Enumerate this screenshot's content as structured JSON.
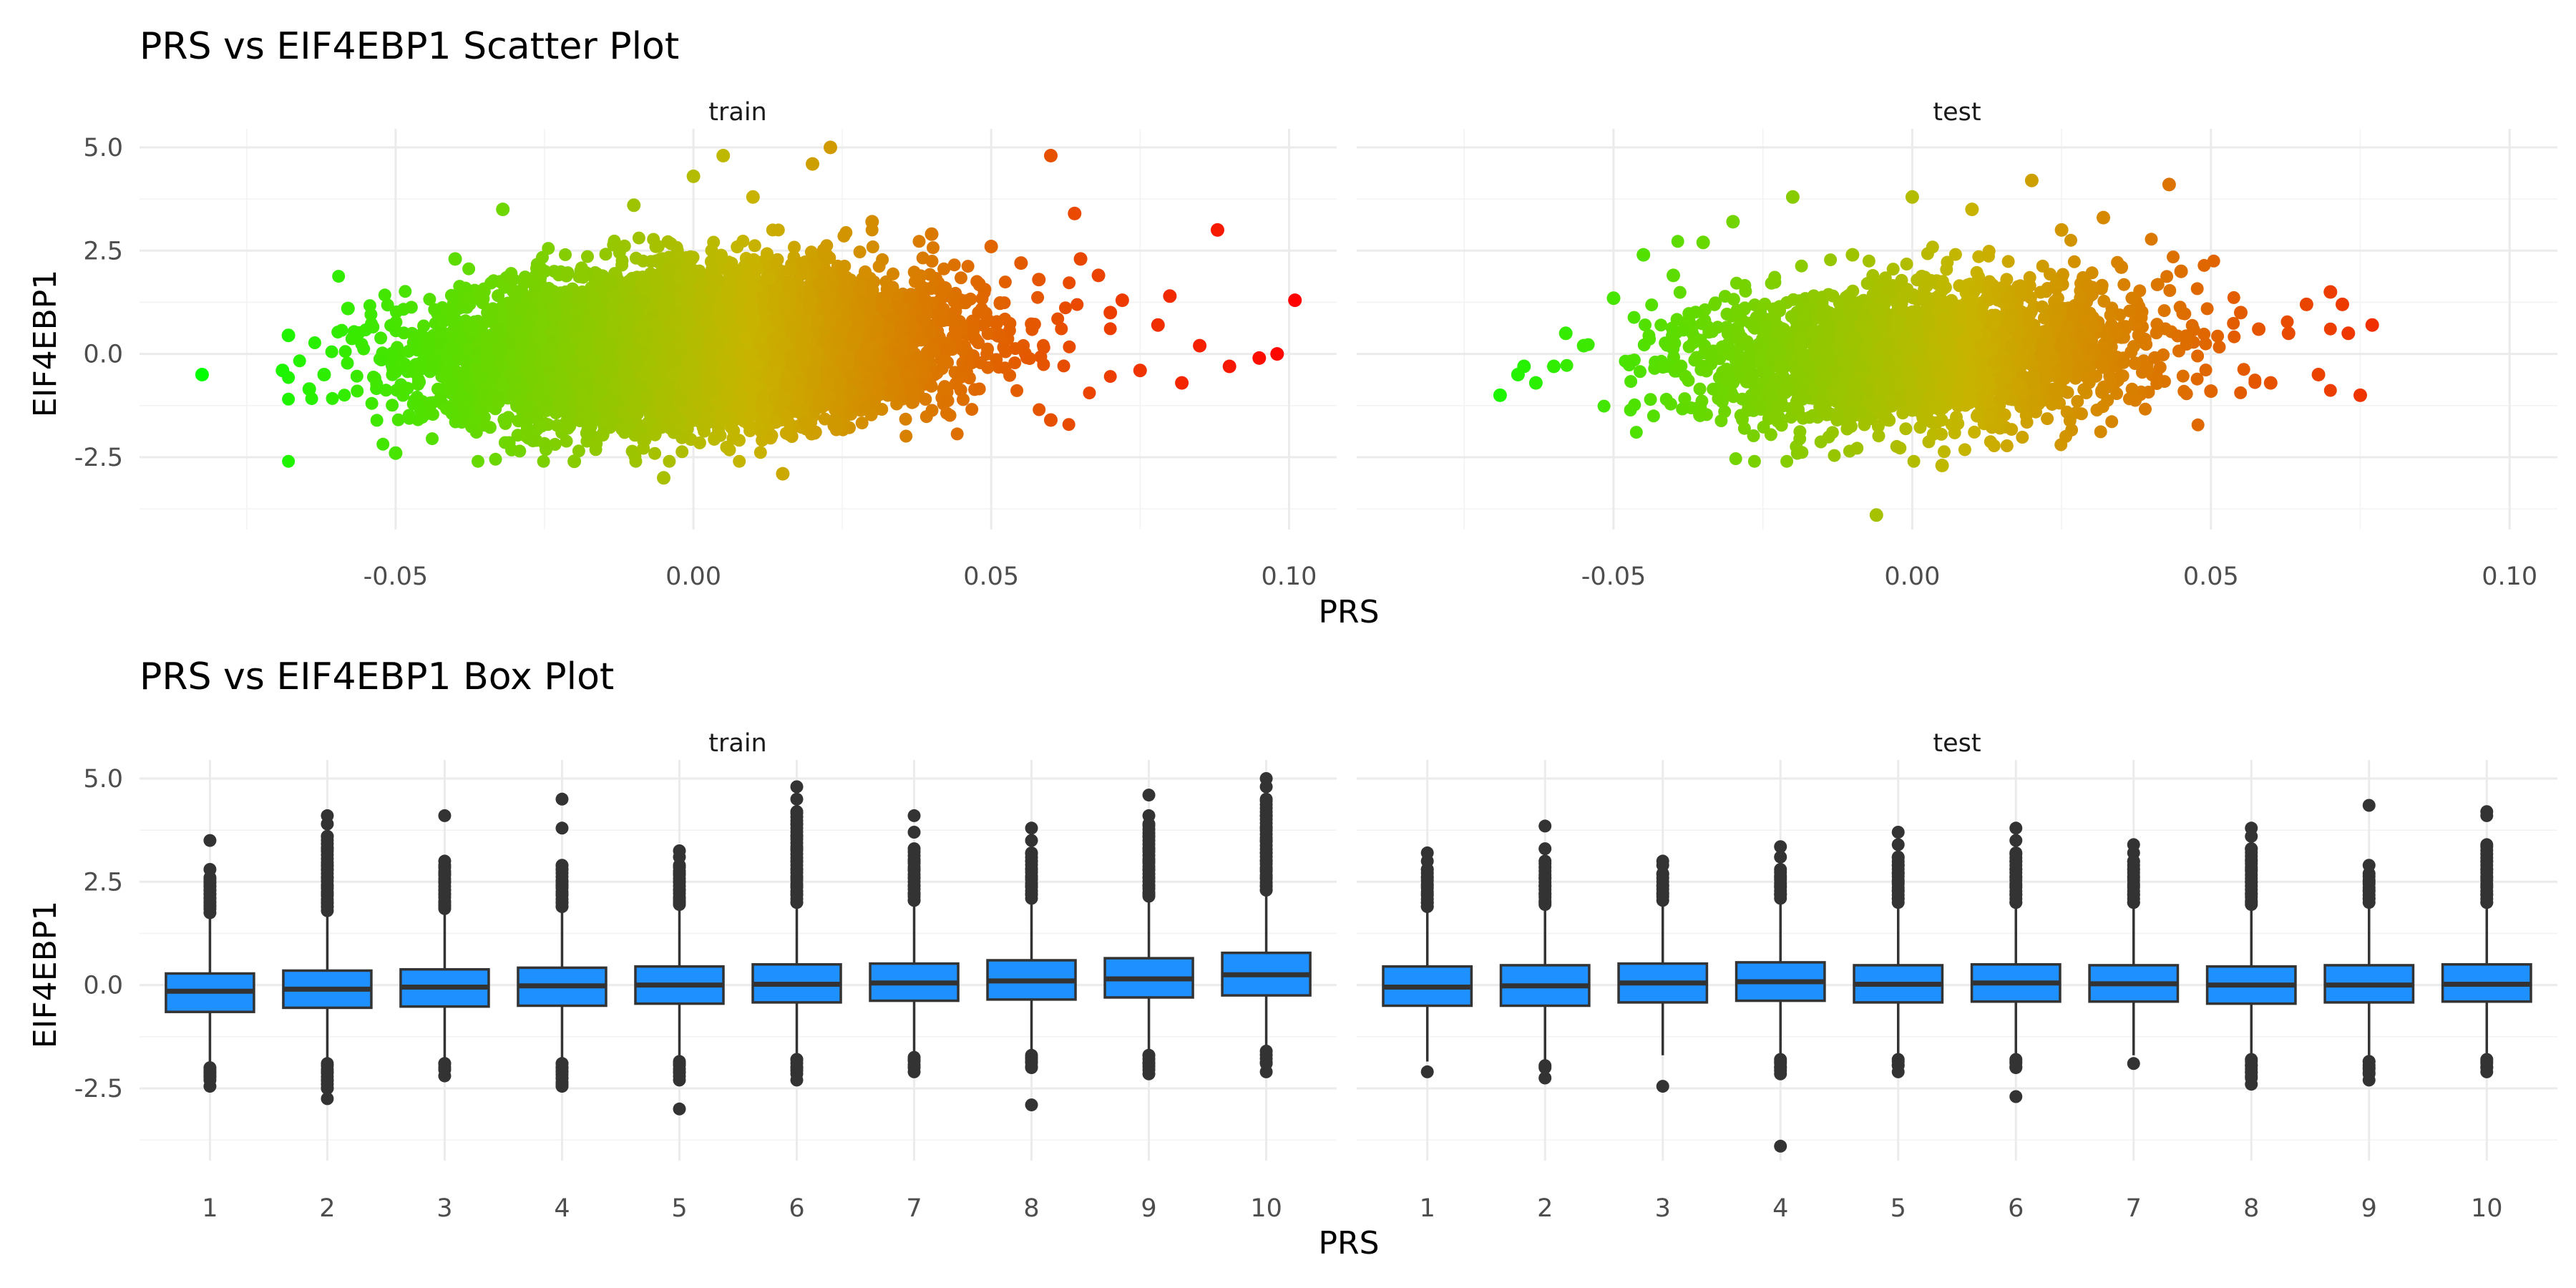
{
  "chart_data": [
    {
      "type": "scatter",
      "title": "PRS vs EIF4EBP1 Scatter Plot",
      "xlabel": "PRS",
      "ylabel": "EIF4EBP1",
      "xlim": [
        -0.093,
        0.108
      ],
      "ylim": [
        -4.25,
        5.45
      ],
      "xticks": [
        -0.05,
        0.0,
        0.05,
        0.1
      ],
      "xtick_labels": [
        "-0.05",
        "0.00",
        "0.05",
        "0.10"
      ],
      "yticks": [
        -2.5,
        0.0,
        2.5,
        5.0
      ],
      "ytick_labels": [
        "-2.5",
        "0.0",
        "2.5",
        "5.0"
      ],
      "grid": true,
      "legend": "none",
      "color_scale": {
        "low": "#00ff00",
        "mid": "#c8b400",
        "high": "#ff0000",
        "maps": "x"
      },
      "panels": [
        {
          "name": "train",
          "spread": {
            "x_center": 0.0,
            "x_sd": 0.02,
            "y_center": 0.15,
            "y_sd": 0.85,
            "n_approx": 8000
          },
          "points": [
            [
              -0.0825,
              -0.5
            ],
            [
              -0.069,
              -0.4
            ],
            [
              -0.068,
              0.45
            ],
            [
              -0.0645,
              -0.85
            ],
            [
              -0.062,
              -0.5
            ],
            [
              -0.058,
              1.1
            ],
            [
              -0.05,
              -2.4
            ],
            [
              -0.04,
              2.3
            ],
            [
              -0.032,
              3.5
            ],
            [
              -0.02,
              -2.6
            ],
            [
              -0.01,
              3.6
            ],
            [
              -0.005,
              -3.0
            ],
            [
              0.0,
              4.3
            ],
            [
              0.005,
              4.8
            ],
            [
              0.01,
              3.8
            ],
            [
              0.015,
              -2.9
            ],
            [
              0.023,
              5.0
            ],
            [
              0.02,
              4.6
            ],
            [
              0.03,
              3.2
            ],
            [
              0.04,
              2.9
            ],
            [
              0.05,
              2.6
            ],
            [
              0.055,
              2.2
            ],
            [
              0.06,
              4.8
            ],
            [
              0.058,
              1.8
            ],
            [
              0.06,
              -1.6
            ],
            [
              0.064,
              3.4
            ],
            [
              0.065,
              2.3
            ],
            [
              0.068,
              1.9
            ],
            [
              0.07,
              1.0
            ],
            [
              0.072,
              1.3
            ],
            [
              0.075,
              -0.4
            ],
            [
              0.078,
              0.7
            ],
            [
              0.08,
              1.4
            ],
            [
              0.082,
              -0.7
            ],
            [
              0.085,
              0.2
            ],
            [
              0.088,
              3.0
            ],
            [
              0.09,
              -0.3
            ],
            [
              0.095,
              -0.1
            ],
            [
              0.098,
              0.0
            ],
            [
              0.101,
              1.3
            ]
          ]
        },
        {
          "name": "test",
          "spread": {
            "x_center": 0.0,
            "x_sd": 0.019,
            "y_center": 0.0,
            "y_sd": 0.85,
            "n_approx": 2500
          },
          "points": [
            [
              -0.069,
              -1.0
            ],
            [
              -0.066,
              -0.5
            ],
            [
              -0.065,
              -0.3
            ],
            [
              -0.063,
              -0.7
            ],
            [
              -0.06,
              -0.3
            ],
            [
              -0.058,
              0.5
            ],
            [
              -0.055,
              0.2
            ],
            [
              -0.05,
              1.35
            ],
            [
              -0.045,
              2.4
            ],
            [
              -0.04,
              1.9
            ],
            [
              -0.035,
              2.7
            ],
            [
              -0.03,
              3.2
            ],
            [
              -0.02,
              3.8
            ],
            [
              -0.01,
              2.4
            ],
            [
              -0.006,
              -3.9
            ],
            [
              0.0,
              3.8
            ],
            [
              0.005,
              -2.7
            ],
            [
              0.01,
              3.5
            ],
            [
              0.02,
              4.2
            ],
            [
              0.025,
              3.0
            ],
            [
              0.032,
              3.3
            ],
            [
              0.035,
              2.1
            ],
            [
              0.043,
              4.1
            ],
            [
              0.045,
              2.0
            ],
            [
              0.05,
              -0.9
            ],
            [
              0.055,
              1.0
            ],
            [
              0.058,
              0.6
            ],
            [
              0.06,
              -0.7
            ],
            [
              0.063,
              0.5
            ],
            [
              0.066,
              1.2
            ],
            [
              0.068,
              -0.5
            ],
            [
              0.07,
              1.5
            ],
            [
              0.072,
              1.2
            ],
            [
              0.073,
              0.5
            ],
            [
              0.075,
              -1.0
            ],
            [
              0.077,
              0.7
            ]
          ]
        }
      ]
    },
    {
      "type": "box",
      "title": "PRS vs EIF4EBP1 Box Plot",
      "xlabel": "PRS",
      "ylabel": "EIF4EBP1",
      "categories": [
        "1",
        "2",
        "3",
        "4",
        "5",
        "6",
        "7",
        "8",
        "9",
        "10"
      ],
      "ylim": [
        -4.25,
        5.45
      ],
      "yticks": [
        -2.5,
        0.0,
        2.5,
        5.0
      ],
      "ytick_labels": [
        "-2.5",
        "0.0",
        "2.5",
        "5.0"
      ],
      "grid": true,
      "legend": "none",
      "box_fill": "#1e90ff",
      "line_color": "#333333",
      "panels": [
        {
          "name": "train",
          "boxes": [
            {
              "q1": -0.65,
              "median": -0.15,
              "q3": 0.28,
              "whisker_low": -1.95,
              "whisker_high": 1.65,
              "outliers": [
                3.5,
                2.8,
                2.6,
                2.5,
                2.4,
                2.3,
                2.2,
                2.1,
                2.0,
                1.9,
                -2.0,
                -2.1,
                -2.2,
                -2.3,
                -2.45
              ]
            },
            {
              "q1": -0.55,
              "median": -0.1,
              "q3": 0.35,
              "whisker_low": -1.85,
              "whisker_high": 1.7,
              "outliers": [
                4.1,
                3.9,
                3.6,
                3.3,
                2.9,
                2.8,
                2.6,
                2.4,
                2.2,
                2.0,
                1.9,
                -1.9,
                -2.1,
                -2.3,
                -2.5,
                -2.75
              ]
            },
            {
              "q1": -0.52,
              "median": -0.05,
              "q3": 0.38,
              "whisker_low": -1.8,
              "whisker_high": 1.75,
              "outliers": [
                4.1,
                3.0,
                2.9,
                2.7,
                2.5,
                2.3,
                2.2,
                2.0,
                1.9,
                -1.9,
                -2.05,
                -2.2
              ]
            },
            {
              "q1": -0.5,
              "median": -0.02,
              "q3": 0.42,
              "whisker_low": -1.8,
              "whisker_high": 1.8,
              "outliers": [
                4.5,
                3.8,
                2.9,
                2.8,
                2.5,
                2.4,
                2.2,
                2.0,
                1.9,
                -1.9,
                -2.0,
                -2.1,
                -2.25,
                -2.4,
                -2.45
              ]
            },
            {
              "q1": -0.45,
              "median": 0.0,
              "q3": 0.45,
              "whisker_low": -1.75,
              "whisker_high": 1.85,
              "outliers": [
                3.25,
                3.1,
                2.9,
                2.7,
                2.5,
                2.3,
                2.1,
                2.0,
                -1.9,
                -2.1,
                -2.3,
                -3.0
              ]
            },
            {
              "q1": -0.42,
              "median": 0.02,
              "q3": 0.5,
              "whisker_low": -1.7,
              "whisker_high": 1.9,
              "outliers": [
                4.8,
                4.5,
                4.2,
                3.9,
                3.6,
                3.3,
                3.0,
                2.8,
                2.6,
                2.4,
                2.2,
                2.0,
                -1.8,
                -2.0,
                -2.15,
                -2.3
              ]
            },
            {
              "q1": -0.38,
              "median": 0.05,
              "q3": 0.52,
              "whisker_low": -1.65,
              "whisker_high": 1.95,
              "outliers": [
                4.1,
                3.7,
                3.3,
                3.0,
                2.8,
                2.6,
                2.4,
                2.2,
                2.05,
                -1.8,
                -2.0,
                -2.1
              ]
            },
            {
              "q1": -0.35,
              "median": 0.1,
              "q3": 0.6,
              "whisker_low": -1.6,
              "whisker_high": 2.0,
              "outliers": [
                3.8,
                3.5,
                3.2,
                3.0,
                2.8,
                2.6,
                2.4,
                2.2,
                -1.75,
                -1.85,
                -2.0,
                -2.9
              ]
            },
            {
              "q1": -0.3,
              "median": 0.15,
              "q3": 0.65,
              "whisker_low": -1.6,
              "whisker_high": 2.05,
              "outliers": [
                4.6,
                4.1,
                3.9,
                3.6,
                3.3,
                3.0,
                2.8,
                2.6,
                2.4,
                2.2,
                -1.7,
                -1.9,
                -2.05,
                -2.15
              ]
            },
            {
              "q1": -0.25,
              "median": 0.25,
              "q3": 0.78,
              "whisker_low": -1.5,
              "whisker_high": 2.2,
              "outliers": [
                5.0,
                4.8,
                4.5,
                4.1,
                3.8,
                3.5,
                3.2,
                3.0,
                2.8,
                2.6,
                2.4,
                2.3,
                -1.9,
                -2.1
              ]
            }
          ]
        },
        {
          "name": "test",
          "boxes": [
            {
              "q1": -0.5,
              "median": -0.05,
              "q3": 0.45,
              "whisker_low": -1.85,
              "whisker_high": 1.8,
              "outliers": [
                3.2,
                3.0,
                2.8,
                2.6,
                2.4,
                2.2,
                2.0,
                1.9,
                -2.1
              ]
            },
            {
              "q1": -0.5,
              "median": -0.02,
              "q3": 0.48,
              "whisker_low": -1.85,
              "whisker_high": 1.85,
              "outliers": [
                3.85,
                3.3,
                3.0,
                2.6,
                2.4,
                2.2,
                2.0,
                -2.0,
                -2.25
              ]
            },
            {
              "q1": -0.42,
              "median": 0.05,
              "q3": 0.52,
              "whisker_low": -1.7,
              "whisker_high": 1.95,
              "outliers": [
                3.0,
                2.9,
                2.7,
                2.4,
                2.2,
                -2.45
              ]
            },
            {
              "q1": -0.38,
              "median": 0.08,
              "q3": 0.55,
              "whisker_low": -1.7,
              "whisker_high": 2.0,
              "outliers": [
                3.35,
                3.1,
                2.8,
                2.6,
                2.4,
                2.2,
                -1.85,
                -2.0,
                -2.15,
                -3.9
              ]
            },
            {
              "q1": -0.42,
              "median": 0.02,
              "q3": 0.48,
              "whisker_low": -1.75,
              "whisker_high": 1.9,
              "outliers": [
                3.7,
                3.4,
                3.1,
                2.9,
                2.7,
                2.5,
                2.3,
                2.1,
                -1.8,
                -1.95,
                -2.1
              ]
            },
            {
              "q1": -0.4,
              "median": 0.05,
              "q3": 0.5,
              "whisker_low": -1.7,
              "whisker_high": 1.9,
              "outliers": [
                3.8,
                3.5,
                3.2,
                3.0,
                2.8,
                2.6,
                2.4,
                2.2,
                2.0,
                -1.85,
                -2.0,
                -2.7
              ]
            },
            {
              "q1": -0.4,
              "median": 0.03,
              "q3": 0.48,
              "whisker_low": -1.7,
              "whisker_high": 1.9,
              "outliers": [
                3.4,
                3.2,
                3.0,
                2.8,
                2.6,
                2.4,
                2.2,
                2.0,
                -1.9
              ]
            },
            {
              "q1": -0.45,
              "median": 0.0,
              "q3": 0.45,
              "whisker_low": -1.75,
              "whisker_high": 1.85,
              "outliers": [
                3.8,
                3.6,
                3.3,
                3.0,
                2.8,
                2.5,
                2.2,
                2.0,
                -1.8,
                -1.95,
                -2.1,
                -2.25,
                -2.4
              ]
            },
            {
              "q1": -0.42,
              "median": 0.0,
              "q3": 0.48,
              "whisker_low": -1.75,
              "whisker_high": 1.9,
              "outliers": [
                4.35,
                2.9,
                2.7,
                2.5,
                2.3,
                2.1,
                -1.85,
                -2.0,
                -2.15,
                -2.3
              ]
            },
            {
              "q1": -0.4,
              "median": 0.02,
              "q3": 0.5,
              "whisker_low": -1.7,
              "whisker_high": 1.9,
              "outliers": [
                4.2,
                4.1,
                3.4,
                3.0,
                2.8,
                2.6,
                2.4,
                2.2,
                2.0,
                -1.85,
                -2.0,
                -2.1
              ]
            }
          ]
        }
      ]
    }
  ]
}
